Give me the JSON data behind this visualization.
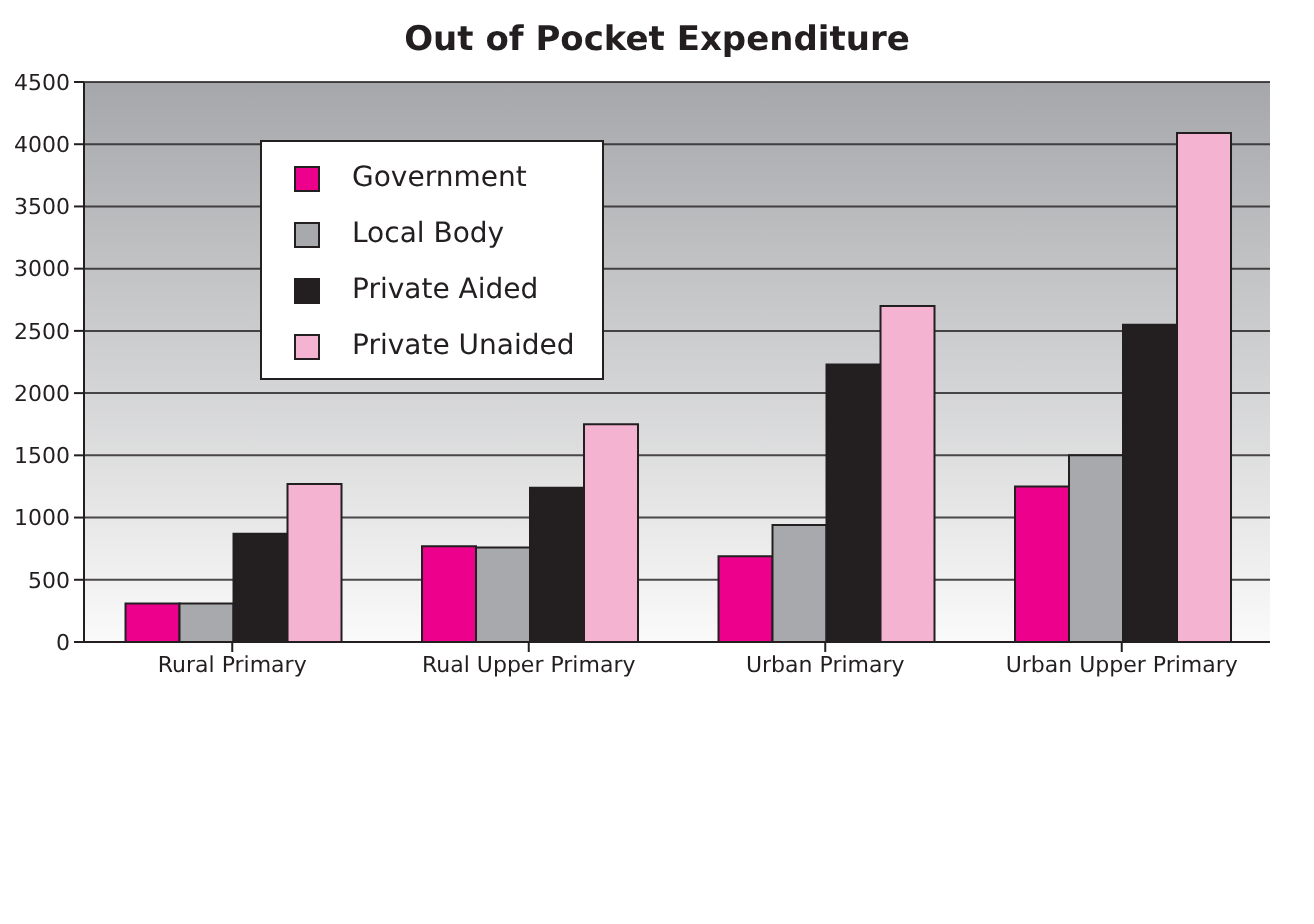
{
  "chart_data": {
    "type": "bar",
    "title": "Out of Pocket Expenditure",
    "categories": [
      "Rural Primary",
      "Rual Upper Primary",
      "Urban Primary",
      "Urban Upper Primary"
    ],
    "series": [
      {
        "name": "Government",
        "color": "#ec008c",
        "values": [
          310,
          770,
          690,
          1250
        ]
      },
      {
        "name": "Local Body",
        "color": "#a7a9ac",
        "values": [
          310,
          760,
          940,
          1500
        ]
      },
      {
        "name": "Private Aided",
        "color": "#231f20",
        "values": [
          870,
          1240,
          2230,
          2550
        ]
      },
      {
        "name": "Private Unaided",
        "color": "#f4b3d0",
        "values": [
          1270,
          1750,
          2700,
          4090
        ]
      }
    ],
    "ylim": [
      0,
      4500
    ],
    "yticks": [
      0,
      500,
      1000,
      1500,
      2000,
      2500,
      3000,
      3500,
      4000,
      4500
    ],
    "grid": "y",
    "legend": "top left"
  }
}
